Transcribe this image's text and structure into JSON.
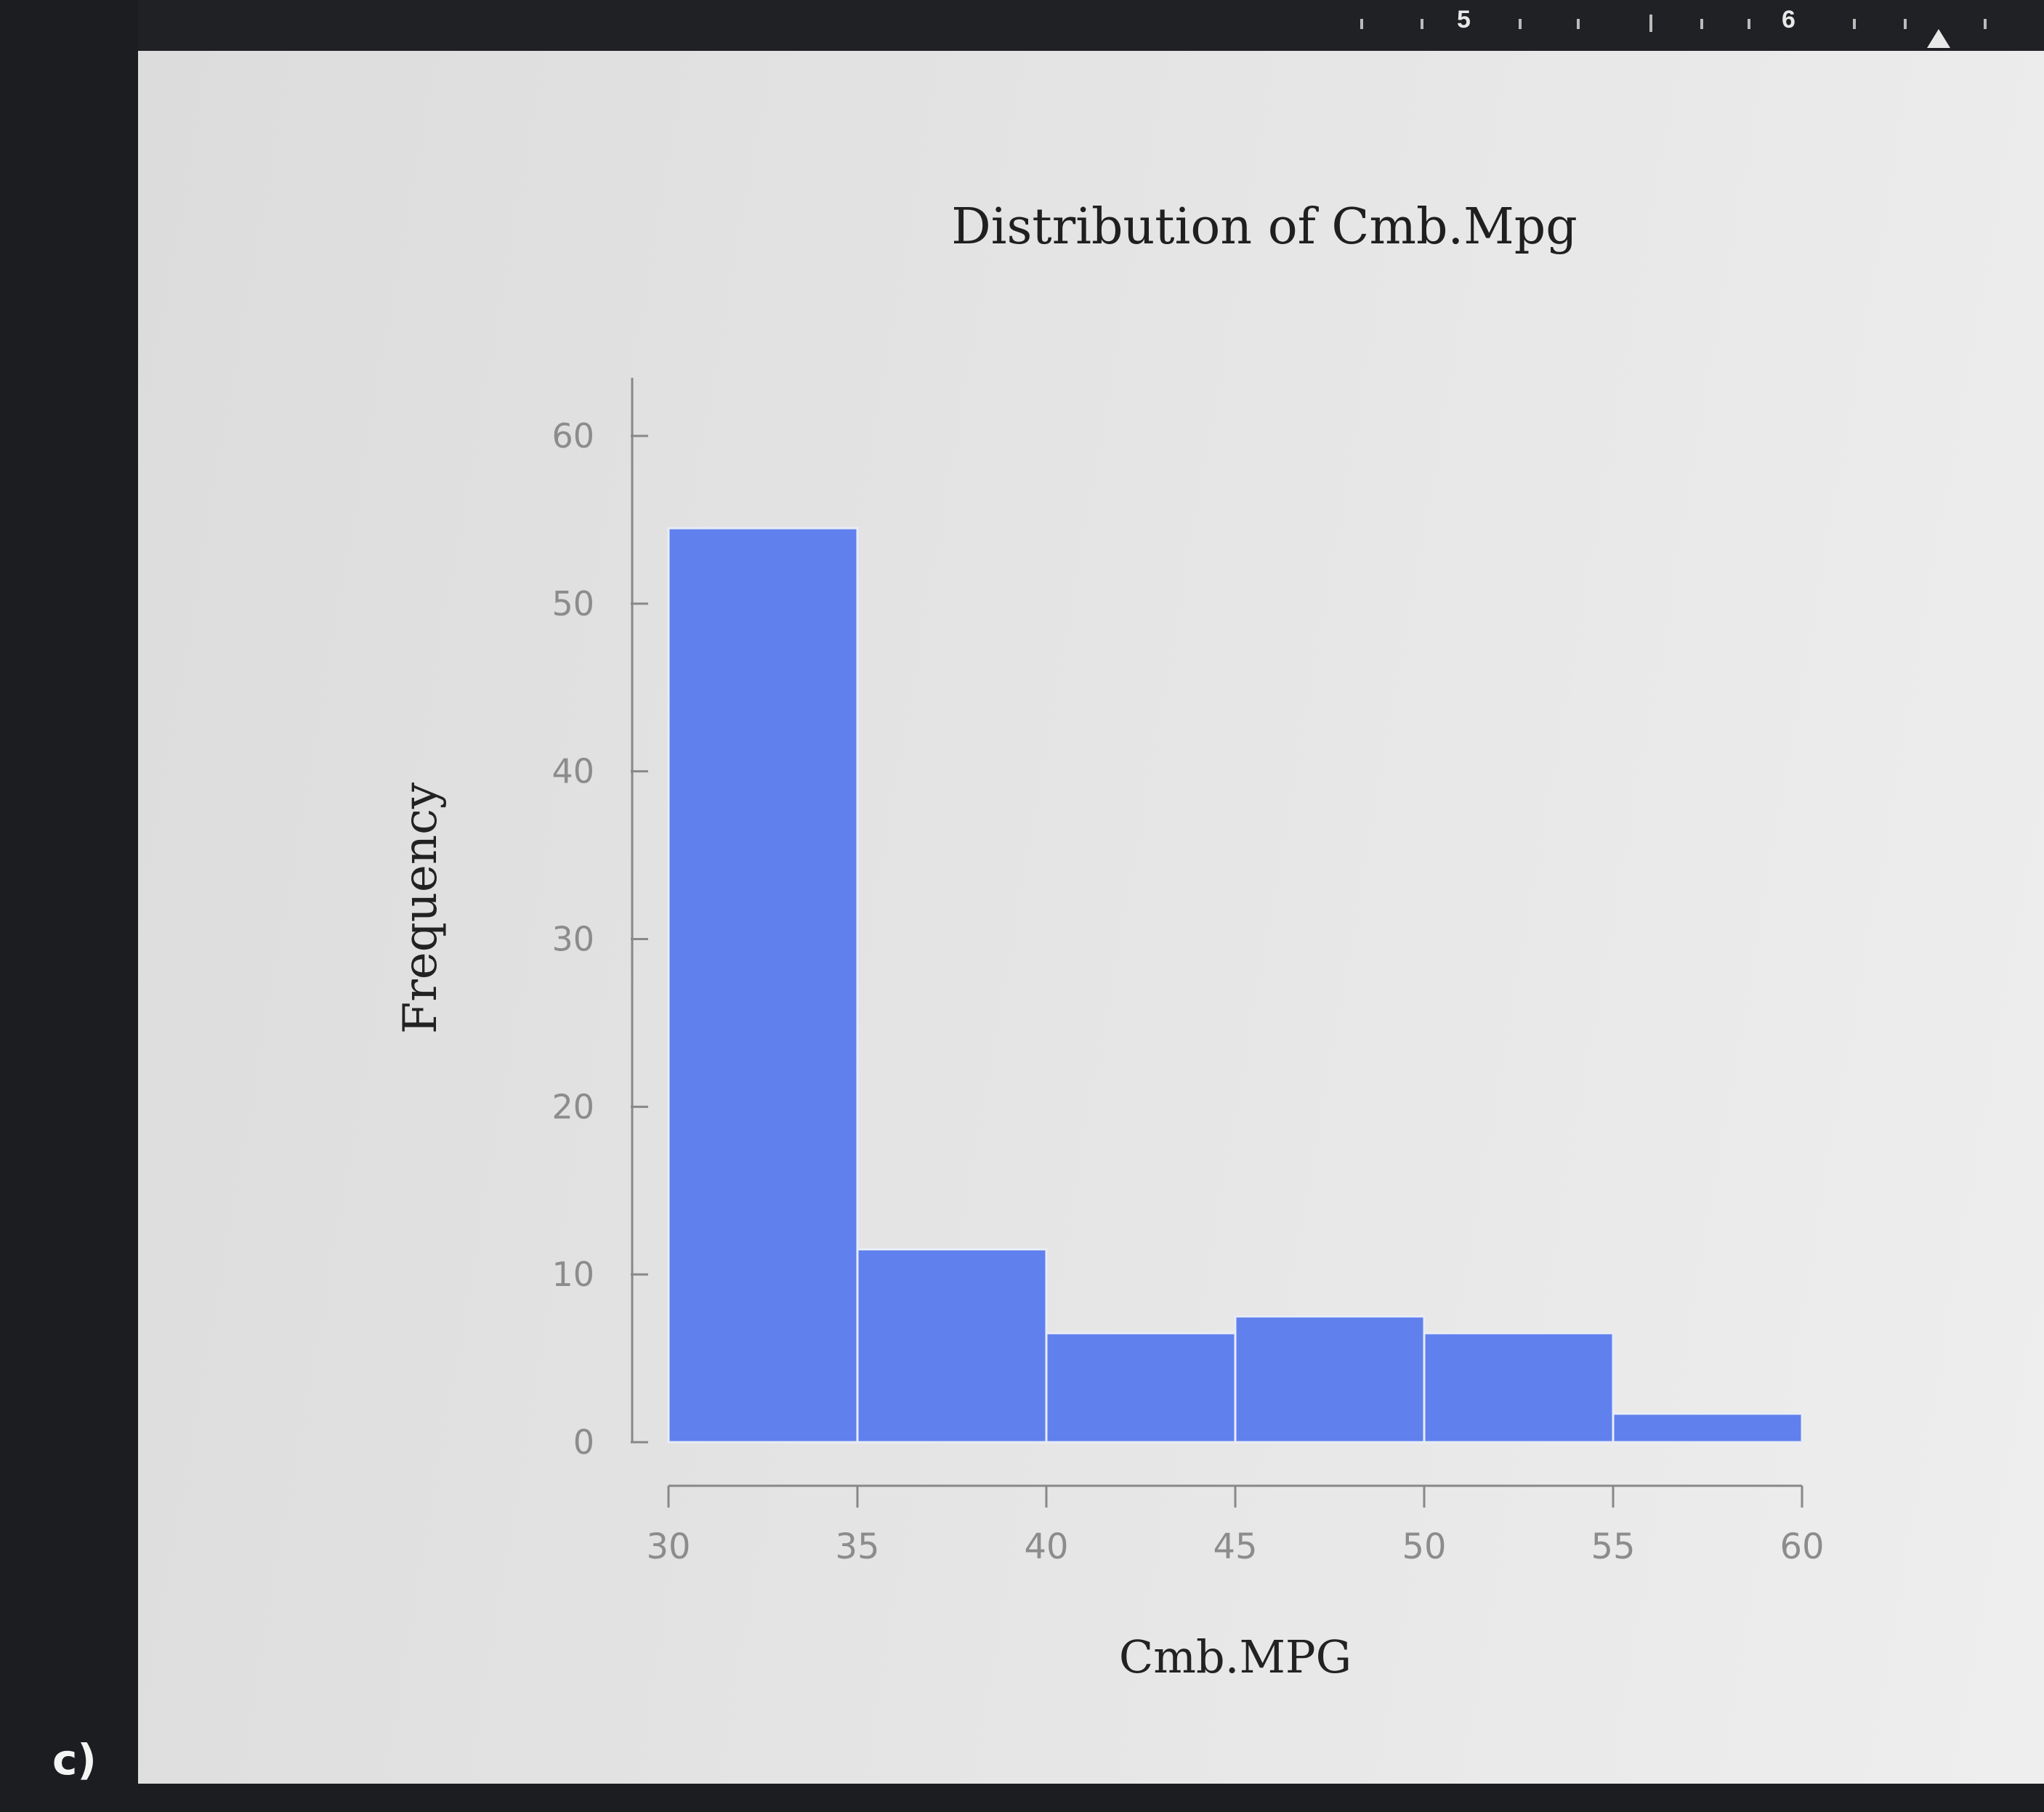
{
  "panel_label": "c)",
  "ruler": {
    "labels": [
      "5",
      "6"
    ]
  },
  "colors": {
    "bar": "#6080ee",
    "axis": "#888888",
    "tick_text": "#8c8c8c",
    "title": "#1f1f1f"
  },
  "chart_data": {
    "type": "bar",
    "subtype": "histogram",
    "title": "Distribution of Cmb.Mpg",
    "xlabel": "Cmb.MPG",
    "ylabel": "Frequency",
    "bins": [
      {
        "start": 30,
        "end": 35,
        "count": 54.5
      },
      {
        "start": 35,
        "end": 40,
        "count": 11.5
      },
      {
        "start": 40,
        "end": 45,
        "count": 6.5
      },
      {
        "start": 45,
        "end": 50,
        "count": 7.5
      },
      {
        "start": 50,
        "end": 55,
        "count": 6.5
      },
      {
        "start": 55,
        "end": 60,
        "count": 1.7
      }
    ],
    "xlim": [
      30,
      60
    ],
    "ylim": [
      0,
      60
    ],
    "xticks": [
      "30",
      "35",
      "40",
      "45",
      "50",
      "55",
      "60"
    ],
    "yticks": [
      "0",
      "10",
      "20",
      "30",
      "40",
      "50",
      "60"
    ],
    "grid": false,
    "legend": "none"
  }
}
